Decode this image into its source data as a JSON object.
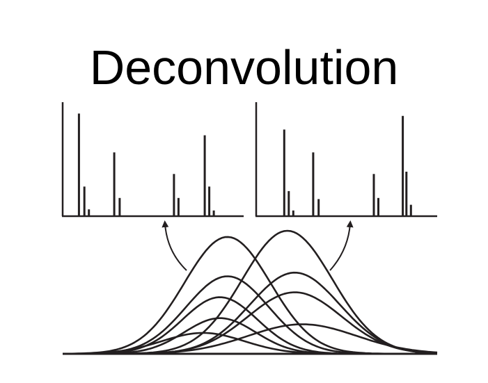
{
  "title": "Deconvolution",
  "colors": {
    "ink": "#231f20",
    "background": "#ffffff"
  },
  "spectra": [
    {
      "name": "spectrum-left",
      "peaks": [
        {
          "mz": 0.09,
          "intensity": 0.9
        },
        {
          "mz": 0.12,
          "intensity": 0.26
        },
        {
          "mz": 0.145,
          "intensity": 0.06
        },
        {
          "mz": 0.285,
          "intensity": 0.56
        },
        {
          "mz": 0.315,
          "intensity": 0.16
        },
        {
          "mz": 0.615,
          "intensity": 0.37
        },
        {
          "mz": 0.64,
          "intensity": 0.16
        },
        {
          "mz": 0.785,
          "intensity": 0.71
        },
        {
          "mz": 0.81,
          "intensity": 0.26
        },
        {
          "mz": 0.835,
          "intensity": 0.05
        }
      ]
    },
    {
      "name": "spectrum-right",
      "peaks": [
        {
          "mz": 0.155,
          "intensity": 0.76
        },
        {
          "mz": 0.18,
          "intensity": 0.22
        },
        {
          "mz": 0.205,
          "intensity": 0.05
        },
        {
          "mz": 0.315,
          "intensity": 0.56
        },
        {
          "mz": 0.345,
          "intensity": 0.15
        },
        {
          "mz": 0.65,
          "intensity": 0.37
        },
        {
          "mz": 0.675,
          "intensity": 0.16
        },
        {
          "mz": 0.81,
          "intensity": 0.88
        },
        {
          "mz": 0.83,
          "intensity": 0.39
        },
        {
          "mz": 0.855,
          "intensity": 0.1
        }
      ]
    }
  ],
  "chromatogram": {
    "peaks": [
      {
        "center": 0.44,
        "height": 0.95,
        "width": 0.115
      },
      {
        "center": 0.44,
        "height": 0.63,
        "width": 0.11
      },
      {
        "center": 0.42,
        "height": 0.46,
        "width": 0.1
      },
      {
        "center": 0.42,
        "height": 0.29,
        "width": 0.095
      },
      {
        "center": 0.375,
        "height": 0.17,
        "width": 0.11
      },
      {
        "center": 0.6,
        "height": 1.0,
        "width": 0.12
      },
      {
        "center": 0.62,
        "height": 0.66,
        "width": 0.12
      },
      {
        "center": 0.62,
        "height": 0.5,
        "width": 0.125
      },
      {
        "center": 0.64,
        "height": 0.24,
        "width": 0.145
      }
    ]
  }
}
